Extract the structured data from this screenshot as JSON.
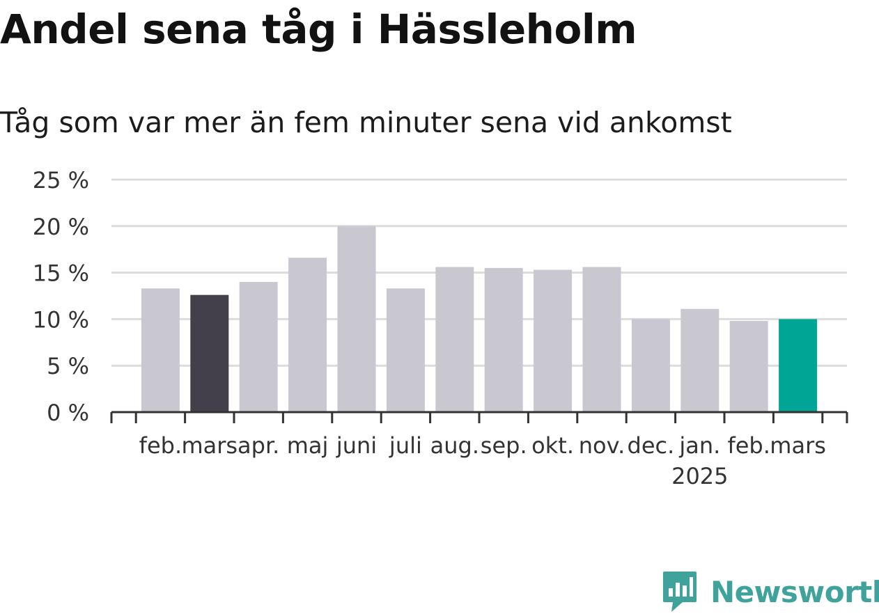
{
  "title": "Andel sena tåg i Hässleholm",
  "subtitle": "Tåg som var mer än fem minuter sena vid ankomst",
  "brand": {
    "name": "Newsworthy",
    "color": "#3fa39c",
    "icon": "bar-chart-badge-icon"
  },
  "colors": {
    "default": "#c9c8d1",
    "highlight_prev": "#43404c",
    "highlight_current": "#00a596",
    "grid": "#dcdcdc",
    "axis": "#333333"
  },
  "chart_data": {
    "type": "bar",
    "title": "Andel sena tåg i Hässleholm",
    "subtitle": "Tåg som var mer än fem minuter sena vid ankomst",
    "xlabel": "",
    "ylabel": "",
    "ylim": [
      0,
      25
    ],
    "yticks": [
      0,
      5,
      10,
      15,
      20,
      25
    ],
    "ytick_labels": [
      "0 %",
      "5 %",
      "10 %",
      "15 %",
      "20 %",
      "25 %"
    ],
    "grid": true,
    "legend": "none",
    "categories": [
      "feb.",
      "mars",
      "apr.",
      "maj",
      "juni",
      "juli",
      "aug.",
      "sep.",
      "okt.",
      "nov.",
      "dec.",
      "jan.",
      "feb.",
      "mars"
    ],
    "year_labels": [
      "",
      "",
      "",
      "",
      "",
      "",
      "",
      "",
      "",
      "",
      "",
      "2025",
      "",
      ""
    ],
    "values": [
      13.3,
      12.6,
      14.0,
      16.6,
      20.0,
      13.3,
      15.6,
      15.5,
      15.3,
      15.6,
      10.0,
      11.1,
      9.8,
      10.0
    ],
    "highlight": [
      "default",
      "highlight_prev",
      "default",
      "default",
      "default",
      "default",
      "default",
      "default",
      "default",
      "default",
      "default",
      "default",
      "default",
      "highlight_current"
    ]
  }
}
